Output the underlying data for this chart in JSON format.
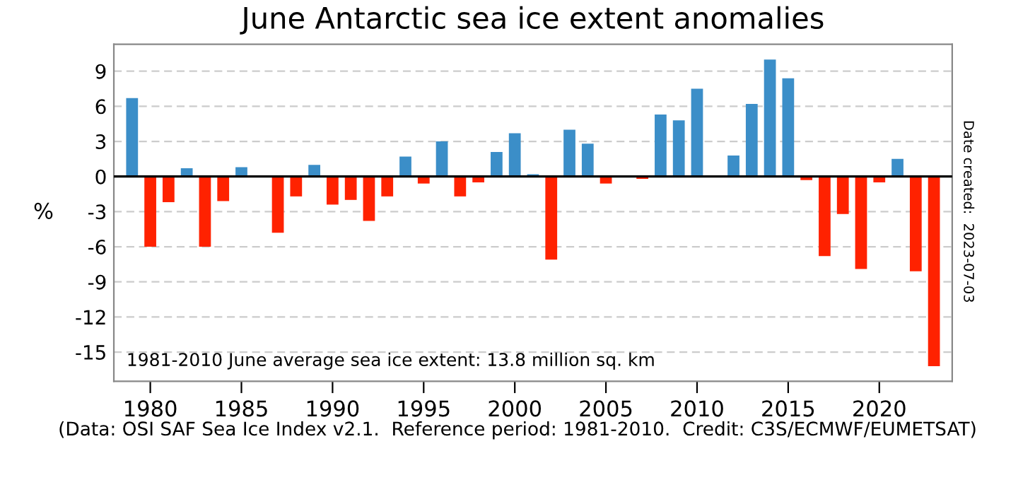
{
  "chart_data": {
    "type": "bar",
    "title": "June Antarctic sea ice extent anomalies",
    "ylabel": "%",
    "x": [
      1979,
      1980,
      1981,
      1982,
      1983,
      1984,
      1985,
      1986,
      1987,
      1988,
      1989,
      1990,
      1991,
      1992,
      1993,
      1994,
      1995,
      1996,
      1997,
      1998,
      1999,
      2000,
      2001,
      2002,
      2003,
      2004,
      2005,
      2006,
      2007,
      2008,
      2009,
      2010,
      2011,
      2012,
      2013,
      2014,
      2015,
      2016,
      2017,
      2018,
      2019,
      2020,
      2021,
      2022,
      2023
    ],
    "values": [
      6.7,
      -6.0,
      -2.2,
      0.7,
      -6.0,
      -2.1,
      0.8,
      0.0,
      -4.8,
      -1.7,
      1.0,
      -2.4,
      -2.0,
      -3.8,
      -1.7,
      1.7,
      -0.6,
      3.0,
      -1.7,
      -0.5,
      2.1,
      3.7,
      0.2,
      -7.1,
      4.0,
      2.8,
      -0.6,
      0.0,
      -0.2,
      5.3,
      4.8,
      7.5,
      0.0,
      1.8,
      6.2,
      10.0,
      8.4,
      -0.3,
      -6.8,
      -3.2,
      -7.9,
      -0.5,
      1.5,
      -8.1,
      -16.2
    ],
    "colors": [
      "#3b8ec8",
      "#ff2200",
      "#ff2200",
      "#3b8ec8",
      "#ff2200",
      "#ff2200",
      "#3b8ec8",
      "#3b8ec8",
      "#ff2200",
      "#ff2200",
      "#3b8ec8",
      "#ff2200",
      "#ff2200",
      "#ff2200",
      "#ff2200",
      "#3b8ec8",
      "#ff2200",
      "#3b8ec8",
      "#ff2200",
      "#ff2200",
      "#3b8ec8",
      "#3b8ec8",
      "#3b8ec8",
      "#ff2200",
      "#3b8ec8",
      "#3b8ec8",
      "#ff2200",
      "#3b8ec8",
      "#ff2200",
      "#3b8ec8",
      "#3b8ec8",
      "#3b8ec8",
      "#3b8ec8",
      "#3b8ec8",
      "#3b8ec8",
      "#3b8ec8",
      "#3b8ec8",
      "#ff2200",
      "#ff2200",
      "#ff2200",
      "#ff2200",
      "#ff2200",
      "#3b8ec8",
      "#ff2200",
      "#ff2200"
    ],
    "xlim": [
      1978,
      2024
    ],
    "xticks": [
      1980,
      1985,
      1990,
      1995,
      2000,
      2005,
      2010,
      2015,
      2020
    ],
    "ylim": [
      -17.5,
      11.3
    ],
    "yticks": [
      {
        "value": 9,
        "label": "9"
      },
      {
        "value": 6,
        "label": "6"
      },
      {
        "value": 3,
        "label": "3"
      },
      {
        "value": 0,
        "label": "0"
      },
      {
        "value": -3,
        "label": "-3"
      },
      {
        "value": -6,
        "label": "-6"
      },
      {
        "value": -9,
        "label": "-9"
      },
      {
        "value": -12,
        "label": "-12"
      },
      {
        "value": -15,
        "label": "-15"
      }
    ],
    "ref_lines": [
      {
        "axis": "y",
        "value": 0,
        "color": "#000000"
      }
    ],
    "grid": "y",
    "annotations": [
      "1981-2010 June average sea ice extent: 13.8 million sq. km",
      "(Data: OSI SAF Sea Ice Index v2.1.  Reference period: 1981-2010.  Credit: C3S/ECMWF/EUMETSAT)",
      "Date created:  2023-07-03"
    ]
  }
}
